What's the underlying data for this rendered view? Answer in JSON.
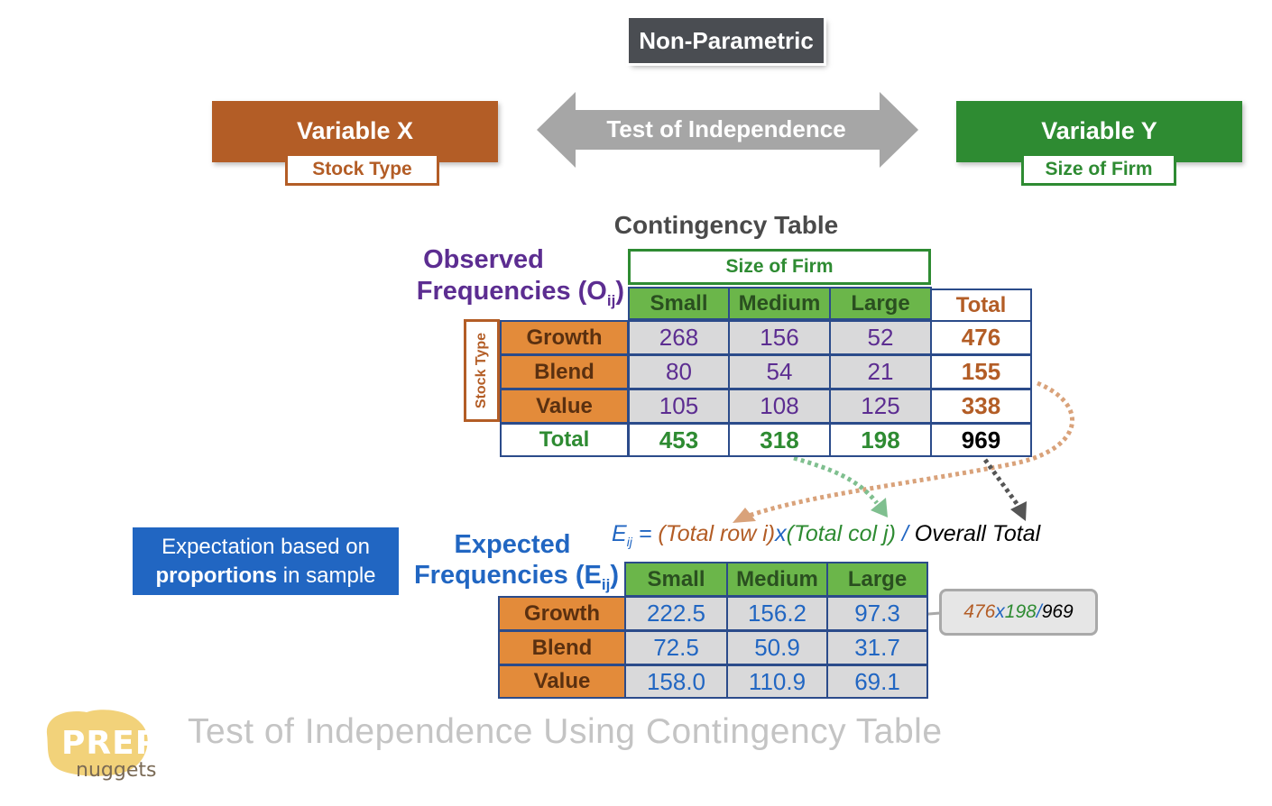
{
  "header": {
    "badge": "Non-Parametric",
    "arrow_label": "Test of Independence"
  },
  "variable_x": {
    "title": "Variable X",
    "name": "Stock Type",
    "color": "#b35d26"
  },
  "variable_y": {
    "title": "Variable Y",
    "name": "Size of Firm",
    "color": "#2e8b32"
  },
  "contingency_title": "Contingency Table",
  "observed": {
    "title_line1": "Observed",
    "title_line2": "Frequencies (O",
    "title_sub": "ij",
    "title_end": ")",
    "col_group": "Size of Firm",
    "row_group": "Stock Type",
    "columns": [
      "Small",
      "Medium",
      "Large"
    ],
    "total_label": "Total",
    "rows": [
      {
        "label": "Growth",
        "values": [
          "268",
          "156",
          "52"
        ],
        "total": "476"
      },
      {
        "label": "Blend",
        "values": [
          "80",
          "54",
          "21"
        ],
        "total": "155"
      },
      {
        "label": "Value",
        "values": [
          "105",
          "108",
          "125"
        ],
        "total": "338"
      }
    ],
    "col_totals": [
      "453",
      "318",
      "198"
    ],
    "grand_total": "969"
  },
  "formula": {
    "lhs": "E",
    "lhs_sub": "ij",
    "eq": " = ",
    "row_part": "(Total row i)",
    "times": "x",
    "col_part": "(Total col j)",
    "slash": " / ",
    "overall": "Overall Total"
  },
  "note": {
    "line1": "Expectation based on",
    "bold": "proportions",
    "rest": " in sample"
  },
  "expected": {
    "title_line1": "Expected",
    "title_line2": "Frequencies (E",
    "title_sub": "ij",
    "title_end": ")",
    "columns": [
      "Small",
      "Medium",
      "Large"
    ],
    "rows": [
      {
        "label": "Growth",
        "values": [
          "222.5",
          "156.2",
          "97.3"
        ]
      },
      {
        "label": "Blend",
        "values": [
          "72.5",
          "50.9",
          "31.7"
        ]
      },
      {
        "label": "Value",
        "values": [
          "158.0",
          "110.9",
          "69.1"
        ]
      }
    ]
  },
  "callout": {
    "a": "476",
    "x": "x",
    "b": "198",
    "slash": " / ",
    "c": "969"
  },
  "footer": {
    "title": "Test of Independence Using Contingency Table",
    "logo_top": "PREP",
    "logo_bottom": "nuggets"
  },
  "colors": {
    "orange": "#b35d26",
    "green": "#2e8b32",
    "purple": "#5c2d91",
    "blue": "#2166c2",
    "gray": "#4a4d52"
  }
}
